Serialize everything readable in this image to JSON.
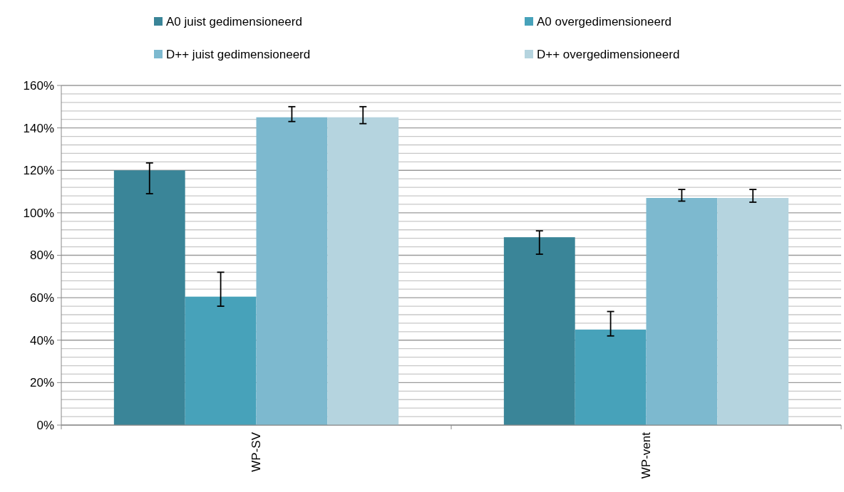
{
  "chart_data": {
    "type": "bar",
    "categories": [
      "WP-SV",
      "WP-vent"
    ],
    "series": [
      {
        "name": "A0 juist gedimensioneerd",
        "color": "#3a8598",
        "values": [
          120,
          88.5
        ],
        "errors": [
          [
            109,
            123.5
          ],
          [
            80.5,
            91.5
          ]
        ]
      },
      {
        "name": "A0 overgedimensioneerd",
        "color": "#47a2ba",
        "values": [
          60.5,
          45
        ],
        "errors": [
          [
            56,
            72
          ],
          [
            42,
            53.5
          ]
        ]
      },
      {
        "name": "D++ juist gedimensioneerd",
        "color": "#7db9cf",
        "values": [
          145,
          107
        ],
        "errors": [
          [
            143,
            150
          ],
          [
            105.5,
            111
          ]
        ]
      },
      {
        "name": "D++ overgedimensioneerd",
        "color": "#b5d4df",
        "values": [
          145,
          107
        ],
        "errors": [
          [
            142,
            150
          ],
          [
            105,
            111
          ]
        ]
      }
    ],
    "ylim": [
      0,
      160
    ],
    "yticks": [
      {
        "value": 0,
        "label": "0%"
      },
      {
        "value": 4,
        "label": null
      },
      {
        "value": 8,
        "label": null
      },
      {
        "value": 12,
        "label": null
      },
      {
        "value": 16,
        "label": null
      },
      {
        "value": 20,
        "label": "20%"
      },
      {
        "value": 24,
        "label": null
      },
      {
        "value": 28,
        "label": null
      },
      {
        "value": 32,
        "label": null
      },
      {
        "value": 36,
        "label": null
      },
      {
        "value": 40,
        "label": "40%"
      },
      {
        "value": 44,
        "label": null
      },
      {
        "value": 48,
        "label": null
      },
      {
        "value": 52,
        "label": null
      },
      {
        "value": 56,
        "label": null
      },
      {
        "value": 60,
        "label": "60%"
      },
      {
        "value": 64,
        "label": null
      },
      {
        "value": 68,
        "label": null
      },
      {
        "value": 72,
        "label": null
      },
      {
        "value": 76,
        "label": null
      },
      {
        "value": 80,
        "label": "80%"
      },
      {
        "value": 84,
        "label": null
      },
      {
        "value": 88,
        "label": null
      },
      {
        "value": 92,
        "label": null
      },
      {
        "value": 96,
        "label": null
      },
      {
        "value": 100,
        "label": "100%"
      },
      {
        "value": 104,
        "label": null
      },
      {
        "value": 108,
        "label": null
      },
      {
        "value": 112,
        "label": null
      },
      {
        "value": 116,
        "label": null
      },
      {
        "value": 120,
        "label": "120%"
      },
      {
        "value": 124,
        "label": null
      },
      {
        "value": 128,
        "label": null
      },
      {
        "value": 132,
        "label": null
      },
      {
        "value": 136,
        "label": null
      },
      {
        "value": 140,
        "label": "140%"
      },
      {
        "value": 144,
        "label": null
      },
      {
        "value": 148,
        "label": null
      },
      {
        "value": 152,
        "label": null
      },
      {
        "value": 156,
        "label": null
      },
      {
        "value": 160,
        "label": "160%"
      }
    ],
    "grid": "y",
    "legend": "top"
  }
}
